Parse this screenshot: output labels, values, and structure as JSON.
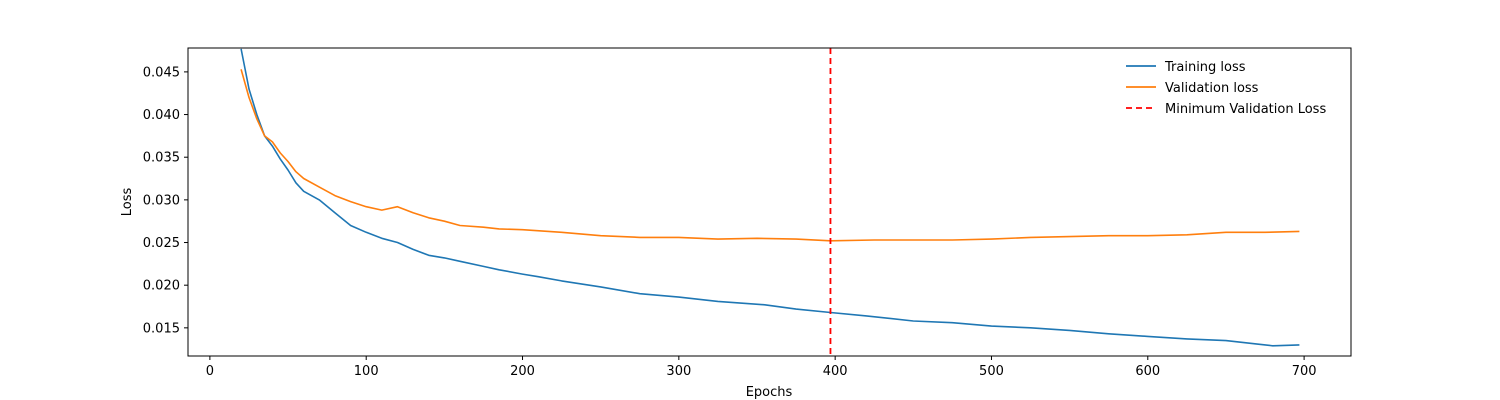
{
  "chart_data": {
    "type": "line",
    "xlabel": "Epochs",
    "ylabel": "Loss",
    "xlim": [
      -14,
      730
    ],
    "ylim": [
      0.0117,
      0.0478
    ],
    "xticks": [
      0,
      100,
      200,
      300,
      400,
      500,
      600,
      700
    ],
    "yticks": [
      0.015,
      0.02,
      0.025,
      0.03,
      0.035,
      0.04,
      0.045
    ],
    "xtick_labels": [
      "0",
      "100",
      "200",
      "300",
      "400",
      "500",
      "600",
      "700"
    ],
    "ytick_labels": [
      "0.015",
      "0.020",
      "0.025",
      "0.030",
      "0.035",
      "0.040",
      "0.045"
    ],
    "grid": false,
    "legend_position": "top-right",
    "series": [
      {
        "name": "Training loss",
        "color": "#1f77b4",
        "x": [
          20,
          25,
          30,
          35,
          40,
          45,
          50,
          55,
          60,
          70,
          80,
          90,
          100,
          110,
          120,
          130,
          140,
          150,
          160,
          175,
          185,
          200,
          210,
          225,
          250,
          275,
          300,
          325,
          355,
          375,
          397,
          420,
          450,
          475,
          500,
          525,
          550,
          575,
          600,
          625,
          650,
          670,
          680,
          697
        ],
        "y": [
          0.0477,
          0.043,
          0.04,
          0.0375,
          0.0363,
          0.0348,
          0.0335,
          0.032,
          0.031,
          0.03,
          0.0285,
          0.027,
          0.0262,
          0.0255,
          0.025,
          0.0242,
          0.0235,
          0.0232,
          0.0228,
          0.0222,
          0.0218,
          0.0213,
          0.021,
          0.0205,
          0.0198,
          0.019,
          0.0186,
          0.0181,
          0.0177,
          0.0172,
          0.0168,
          0.0164,
          0.0158,
          0.0156,
          0.0152,
          0.015,
          0.0147,
          0.0143,
          0.014,
          0.0137,
          0.0135,
          0.0131,
          0.0129,
          0.013
        ]
      },
      {
        "name": "Validation loss",
        "color": "#ff7f0e",
        "x": [
          20,
          25,
          30,
          35,
          40,
          45,
          50,
          55,
          60,
          70,
          80,
          90,
          100,
          110,
          120,
          130,
          140,
          150,
          160,
          175,
          185,
          200,
          225,
          250,
          275,
          300,
          325,
          350,
          375,
          397,
          425,
          450,
          475,
          500,
          525,
          550,
          575,
          600,
          625,
          650,
          675,
          697
        ],
        "y": [
          0.0453,
          0.042,
          0.0395,
          0.0375,
          0.0368,
          0.0355,
          0.0345,
          0.0333,
          0.0325,
          0.0315,
          0.0305,
          0.0298,
          0.0292,
          0.0288,
          0.0292,
          0.0285,
          0.0279,
          0.0275,
          0.027,
          0.0268,
          0.0266,
          0.0265,
          0.0262,
          0.0258,
          0.0256,
          0.0256,
          0.0254,
          0.0255,
          0.0254,
          0.0252,
          0.0253,
          0.0253,
          0.0253,
          0.0254,
          0.0256,
          0.0257,
          0.0258,
          0.0258,
          0.0259,
          0.0262,
          0.0262,
          0.0263
        ]
      }
    ],
    "vline": {
      "name": "Minimum Validation Loss",
      "x": 397,
      "color": "#ff0000",
      "style": "dashed"
    }
  }
}
